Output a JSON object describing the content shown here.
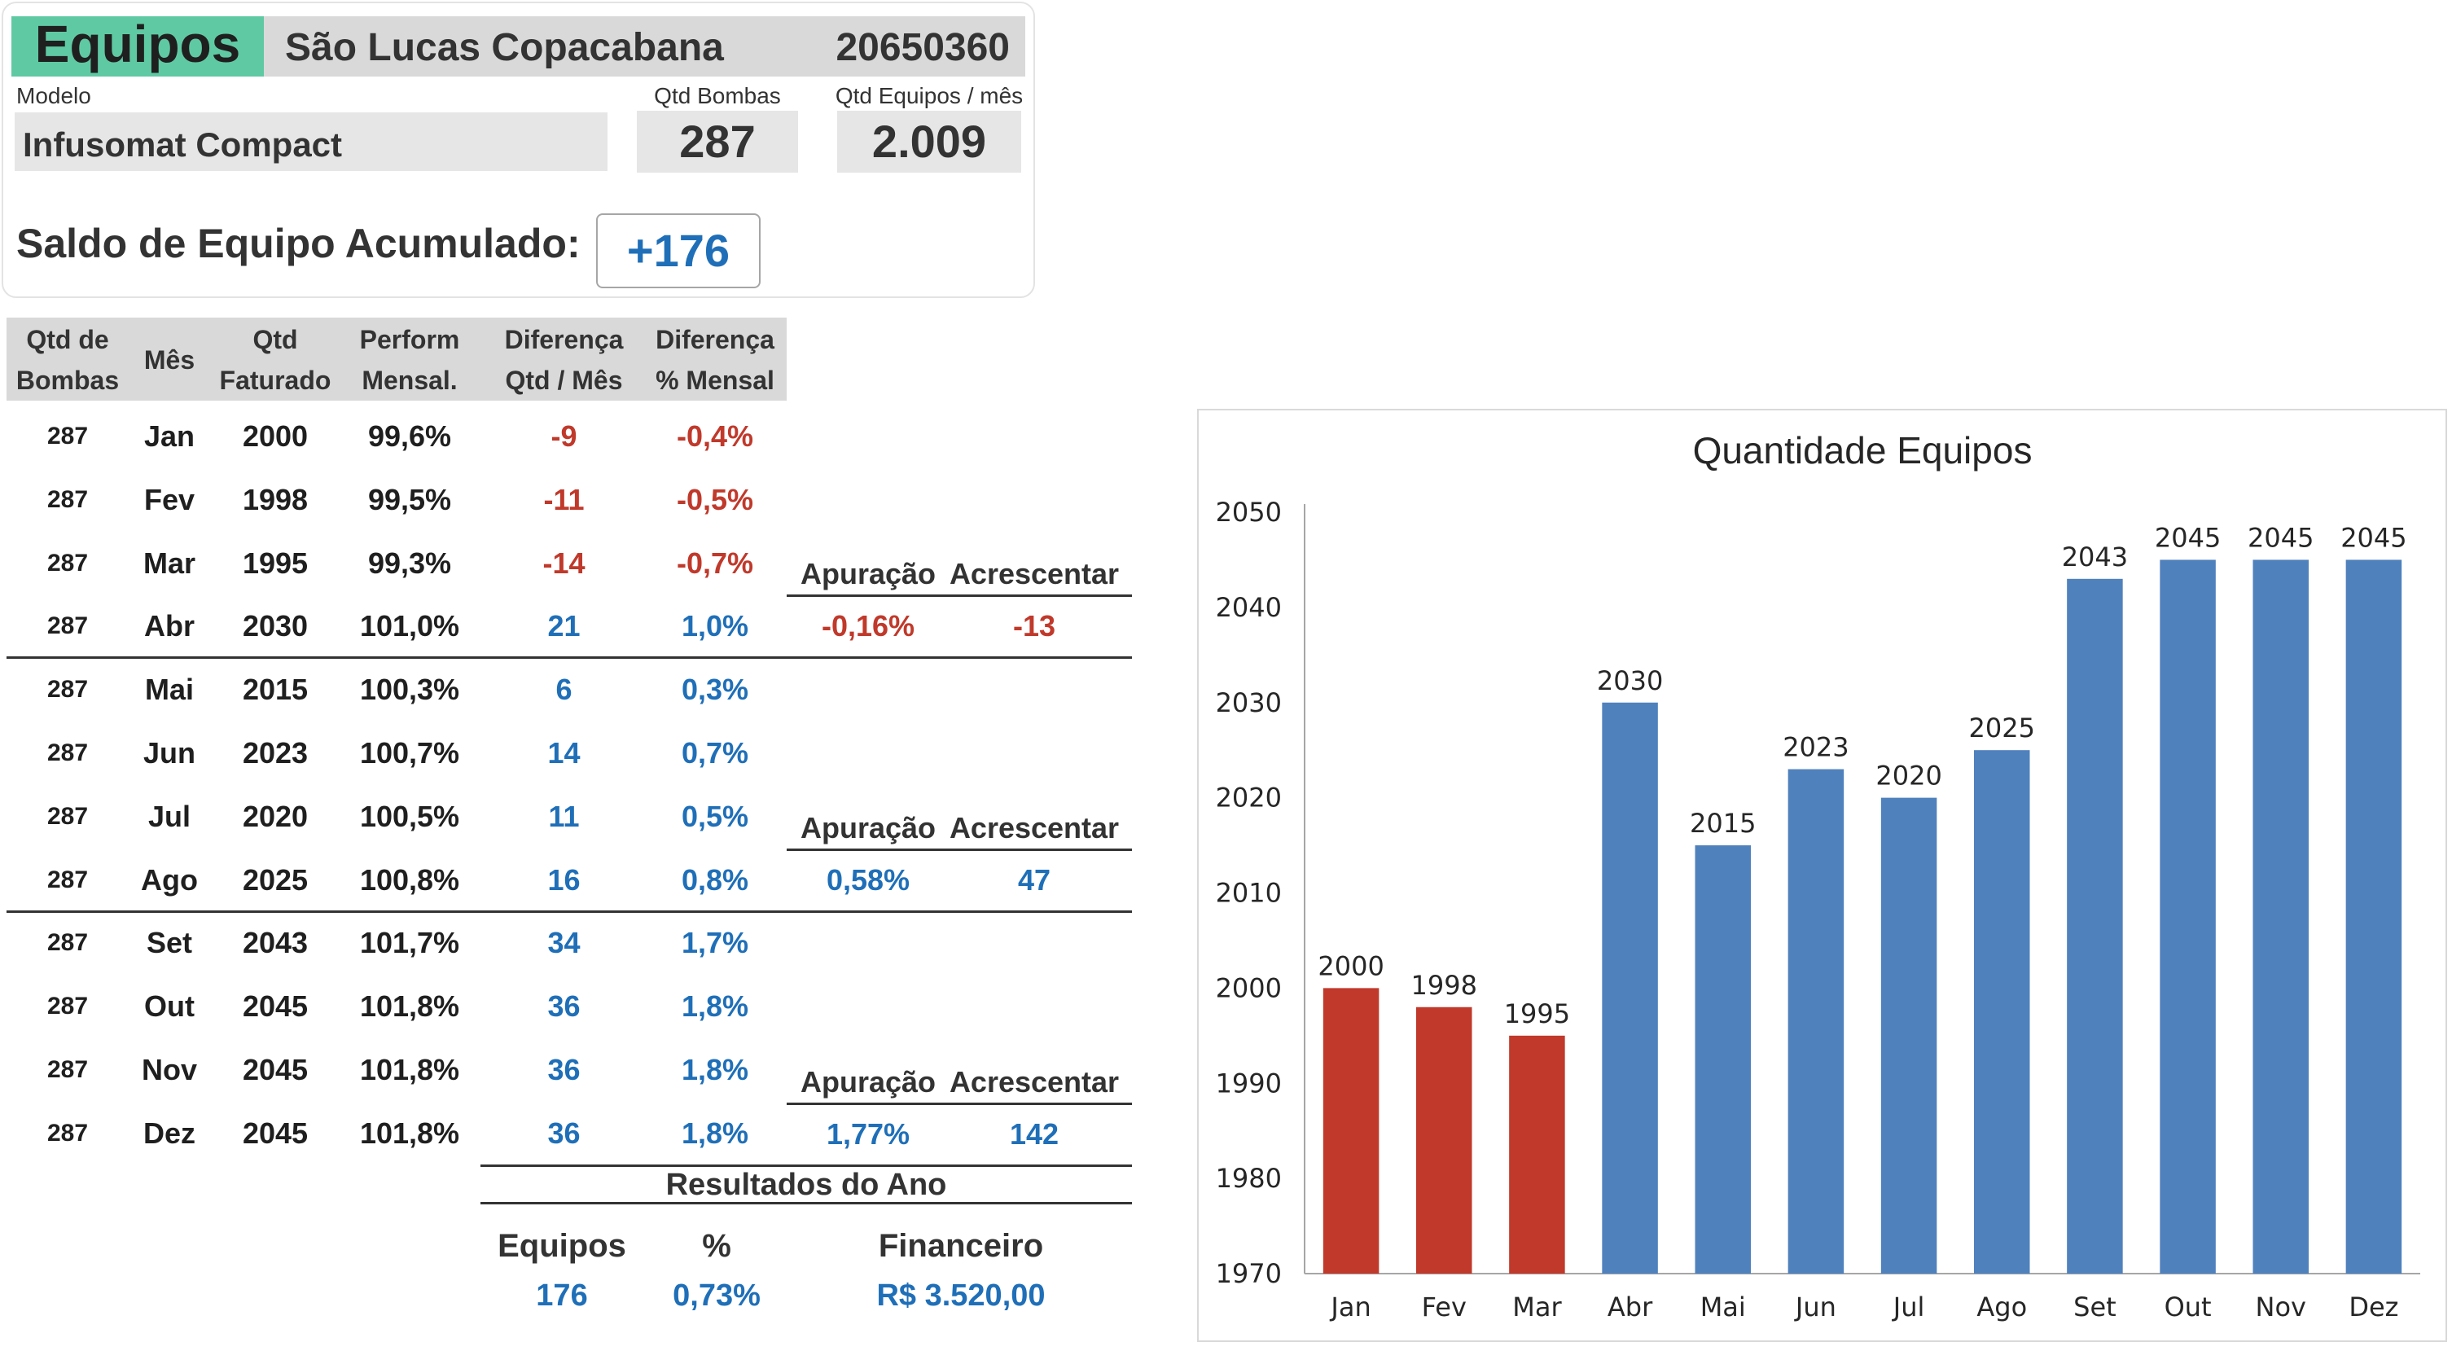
{
  "header": {
    "title": "Equipos",
    "location": "São Lucas Copacabana",
    "code": "20650360",
    "modelo_label": "Modelo",
    "modelo_value": "Infusomat Compact",
    "qtd_bombas_label": "Qtd Bombas",
    "qtd_bombas_value": "287",
    "qtd_equipos_label": "Qtd Equipos / mês",
    "qtd_equipos_value": "2.009",
    "saldo_label": "Saldo de Equipo Acumulado:",
    "saldo_value": "+176"
  },
  "table": {
    "headers": [
      {
        "line1": "Qtd de",
        "line2": "Bombas"
      },
      {
        "line1": "Mês",
        "line2": ""
      },
      {
        "line1": "Qtd",
        "line2": "Faturado"
      },
      {
        "line1": "Perform",
        "line2": "Mensal."
      },
      {
        "line1": "Diferença",
        "line2": "Qtd / Mês"
      },
      {
        "line1": "Diferença",
        "line2": "% Mensal"
      }
    ],
    "rows": [
      {
        "bombas": "287",
        "mes": "Jan",
        "faturado": "2000",
        "perform": "99,6%",
        "dif_qtd": "-9",
        "dif_pct": "-0,4%",
        "neg": true
      },
      {
        "bombas": "287",
        "mes": "Fev",
        "faturado": "1998",
        "perform": "99,5%",
        "dif_qtd": "-11",
        "dif_pct": "-0,5%",
        "neg": true
      },
      {
        "bombas": "287",
        "mes": "Mar",
        "faturado": "1995",
        "perform": "99,3%",
        "dif_qtd": "-14",
        "dif_pct": "-0,7%",
        "neg": true
      },
      {
        "bombas": "287",
        "mes": "Abr",
        "faturado": "2030",
        "perform": "101,0%",
        "dif_qtd": "21",
        "dif_pct": "1,0%",
        "neg": false
      },
      {
        "bombas": "287",
        "mes": "Mai",
        "faturado": "2015",
        "perform": "100,3%",
        "dif_qtd": "6",
        "dif_pct": "0,3%",
        "neg": false
      },
      {
        "bombas": "287",
        "mes": "Jun",
        "faturado": "2023",
        "perform": "100,7%",
        "dif_qtd": "14",
        "dif_pct": "0,7%",
        "neg": false
      },
      {
        "bombas": "287",
        "mes": "Jul",
        "faturado": "2020",
        "perform": "100,5%",
        "dif_qtd": "11",
        "dif_pct": "0,5%",
        "neg": false
      },
      {
        "bombas": "287",
        "mes": "Ago",
        "faturado": "2025",
        "perform": "100,8%",
        "dif_qtd": "16",
        "dif_pct": "0,8%",
        "neg": false
      },
      {
        "bombas": "287",
        "mes": "Set",
        "faturado": "2043",
        "perform": "101,7%",
        "dif_qtd": "34",
        "dif_pct": "1,7%",
        "neg": false
      },
      {
        "bombas": "287",
        "mes": "Out",
        "faturado": "2045",
        "perform": "101,8%",
        "dif_qtd": "36",
        "dif_pct": "1,8%",
        "neg": false
      },
      {
        "bombas": "287",
        "mes": "Nov",
        "faturado": "2045",
        "perform": "101,8%",
        "dif_qtd": "36",
        "dif_pct": "1,8%",
        "neg": false
      },
      {
        "bombas": "287",
        "mes": "Dez",
        "faturado": "2045",
        "perform": "101,8%",
        "dif_qtd": "36",
        "dif_pct": "1,8%",
        "neg": false
      }
    ]
  },
  "apuracao": {
    "header_apuracao": "Apuração",
    "header_acrescentar": "Acrescentar",
    "sections": [
      {
        "apuracao": "-0,16%",
        "acrescentar": "-13",
        "neg": true
      },
      {
        "apuracao": "0,58%",
        "acrescentar": "47",
        "neg": false
      },
      {
        "apuracao": "1,77%",
        "acrescentar": "142",
        "neg": false
      }
    ]
  },
  "resultados": {
    "title": "Resultados do Ano",
    "equipos_label": "Equipos",
    "pct_label": "%",
    "financeiro_label": "Financeiro",
    "equipos_value": "176",
    "pct_value": "0,73%",
    "financeiro_value": "R$ 3.520,00"
  },
  "colors": {
    "title_green": "#5fc9a4",
    "negative_red": "#c0392b",
    "positive_blue": "#1f6fb8",
    "bar_red": "#c0392b",
    "bar_blue": "#4f81bd"
  },
  "chart_data": {
    "type": "bar",
    "title": "Quantidade Equipos",
    "categories": [
      "Jan",
      "Fev",
      "Mar",
      "Abr",
      "Mai",
      "Jun",
      "Jul",
      "Ago",
      "Set",
      "Out",
      "Nov",
      "Dez"
    ],
    "values": [
      2000,
      1998,
      1995,
      2030,
      2015,
      2023,
      2020,
      2025,
      2043,
      2045,
      2045,
      2045
    ],
    "bar_colors": [
      "#c0392b",
      "#c0392b",
      "#c0392b",
      "#4f81bd",
      "#4f81bd",
      "#4f81bd",
      "#4f81bd",
      "#4f81bd",
      "#4f81bd",
      "#4f81bd",
      "#4f81bd",
      "#4f81bd"
    ],
    "ylim": [
      1970,
      2050
    ],
    "yticks": [
      1970,
      1980,
      1990,
      2000,
      2010,
      2020,
      2030,
      2040,
      2050
    ],
    "xlabel": "",
    "ylabel": "",
    "grid": false,
    "legend": "none",
    "data_labels": true
  }
}
